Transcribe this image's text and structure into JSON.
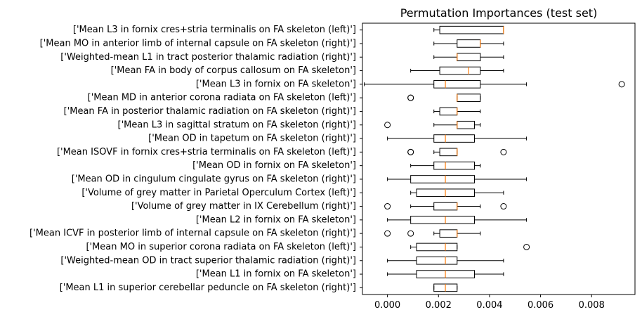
{
  "chart_data": {
    "type": "boxplot",
    "title": "Permutation Importances (test set)",
    "xlabel": "",
    "ylabel": "",
    "xlim": [
      -0.00098,
      0.0097
    ],
    "xticks": [
      0.0,
      0.002,
      0.004,
      0.006,
      0.008
    ],
    "xtick_labels": [
      "0.000",
      "0.002",
      "0.004",
      "0.006",
      "0.008"
    ],
    "grid": false,
    "colors": {
      "box": "#000000",
      "median": "#ff7f0e",
      "whisker": "#000000"
    },
    "features": [
      {
        "label": "['Mean L3 in fornix cres+stria terminalis on FA skeleton (left)']",
        "whislo": 0.00182,
        "q1": 0.00205,
        "med": 0.00455,
        "q3": 0.00455,
        "whishi": 0.00455,
        "fliers": []
      },
      {
        "label": "['Mean MO in anterior limb of internal capsule on FA skeleton (right)']",
        "whislo": 0.00182,
        "q1": 0.00273,
        "med": 0.00364,
        "q3": 0.00364,
        "whishi": 0.00455,
        "fliers": []
      },
      {
        "label": "['Weighted-mean L1 in tract posterior thalamic radiation (right)']",
        "whislo": 0.00182,
        "q1": 0.00273,
        "med": 0.00273,
        "q3": 0.00364,
        "whishi": 0.00455,
        "fliers": []
      },
      {
        "label": "['Mean FA in body of corpus callosum on FA skeleton']",
        "whislo": 0.00091,
        "q1": 0.00205,
        "med": 0.00318,
        "q3": 0.00364,
        "whishi": 0.00455,
        "fliers": []
      },
      {
        "label": "['Mean L3 in fornix on FA skeleton']",
        "whislo": -0.00091,
        "q1": 0.00182,
        "med": 0.00227,
        "q3": 0.00364,
        "whishi": 0.00545,
        "fliers": [
          0.00918
        ]
      },
      {
        "label": "['Mean MD in anterior corona radiata on FA skeleton (left)']",
        "whislo": 0.00273,
        "q1": 0.00273,
        "med": 0.00273,
        "q3": 0.00364,
        "whishi": 0.00364,
        "fliers": [
          0.00091,
          0.00091
        ]
      },
      {
        "label": "['Mean FA in posterior thalamic radiation on FA skeleton (right)']",
        "whislo": 0.00182,
        "q1": 0.00205,
        "med": 0.00273,
        "q3": 0.00273,
        "whishi": 0.00364,
        "fliers": []
      },
      {
        "label": "['Mean L3 in sagittal stratum on FA skeleton (right)']",
        "whislo": 0.00182,
        "q1": 0.00273,
        "med": 0.00273,
        "q3": 0.00341,
        "whishi": 0.00364,
        "fliers": [
          0.0
        ]
      },
      {
        "label": "['Mean OD in tapetum on FA skeleton (right)']",
        "whislo": 0.0,
        "q1": 0.00182,
        "med": 0.00227,
        "q3": 0.00341,
        "whishi": 0.00545,
        "fliers": []
      },
      {
        "label": "['Mean ISOVF in fornix cres+stria terminalis on FA skeleton (left)']",
        "whislo": 0.00182,
        "q1": 0.00205,
        "med": 0.00273,
        "q3": 0.00273,
        "whishi": 0.00273,
        "fliers": [
          0.00091,
          0.00091,
          0.00455
        ]
      },
      {
        "label": "['Mean OD in fornix on FA skeleton']",
        "whislo": 0.00091,
        "q1": 0.00182,
        "med": 0.00227,
        "q3": 0.00341,
        "whishi": 0.00364,
        "fliers": []
      },
      {
        "label": "['Mean OD in cingulum cingulate gyrus on FA skeleton (right)']",
        "whislo": 0.0,
        "q1": 0.00091,
        "med": 0.00227,
        "q3": 0.00341,
        "whishi": 0.00545,
        "fliers": []
      },
      {
        "label": "['Volume of grey matter in Parietal Operculum Cortex (left)']",
        "whislo": 0.00091,
        "q1": 0.00114,
        "med": 0.00227,
        "q3": 0.00341,
        "whishi": 0.00455,
        "fliers": []
      },
      {
        "label": "['Volume of grey matter in IX Cerebellum (right)']",
        "whislo": 0.00091,
        "q1": 0.00182,
        "med": 0.00273,
        "q3": 0.00273,
        "whishi": 0.00364,
        "fliers": [
          0.0,
          0.00455
        ]
      },
      {
        "label": "['Mean L2 in fornix on FA skeleton']",
        "whislo": 0.0,
        "q1": 0.00091,
        "med": 0.00227,
        "q3": 0.00341,
        "whishi": 0.00545,
        "fliers": []
      },
      {
        "label": "['Mean ICVF in posterior limb of internal capsule on FA skeleton (right)']",
        "whislo": 0.00182,
        "q1": 0.00205,
        "med": 0.00273,
        "q3": 0.00273,
        "whishi": 0.00364,
        "fliers": [
          0.0,
          0.00091
        ]
      },
      {
        "label": "['Mean MO in superior corona radiata on FA skeleton (left)']",
        "whislo": 0.00091,
        "q1": 0.00114,
        "med": 0.00227,
        "q3": 0.00273,
        "whishi": 0.00273,
        "fliers": [
          0.00545
        ]
      },
      {
        "label": "['Weighted-mean OD in tract superior thalamic radiation (right)']",
        "whislo": 0.0,
        "q1": 0.00114,
        "med": 0.00227,
        "q3": 0.00273,
        "whishi": 0.00455,
        "fliers": []
      },
      {
        "label": "['Mean L1 in fornix on FA skeleton']",
        "whislo": 0.0,
        "q1": 0.00114,
        "med": 0.00227,
        "q3": 0.00341,
        "whishi": 0.00455,
        "fliers": []
      },
      {
        "label": "['Mean L1 in superior cerebellar peduncle on FA skeleton (right)']",
        "whislo": 0.00182,
        "q1": 0.00182,
        "med": 0.00227,
        "q3": 0.00273,
        "whishi": 0.00273,
        "fliers": []
      }
    ]
  }
}
